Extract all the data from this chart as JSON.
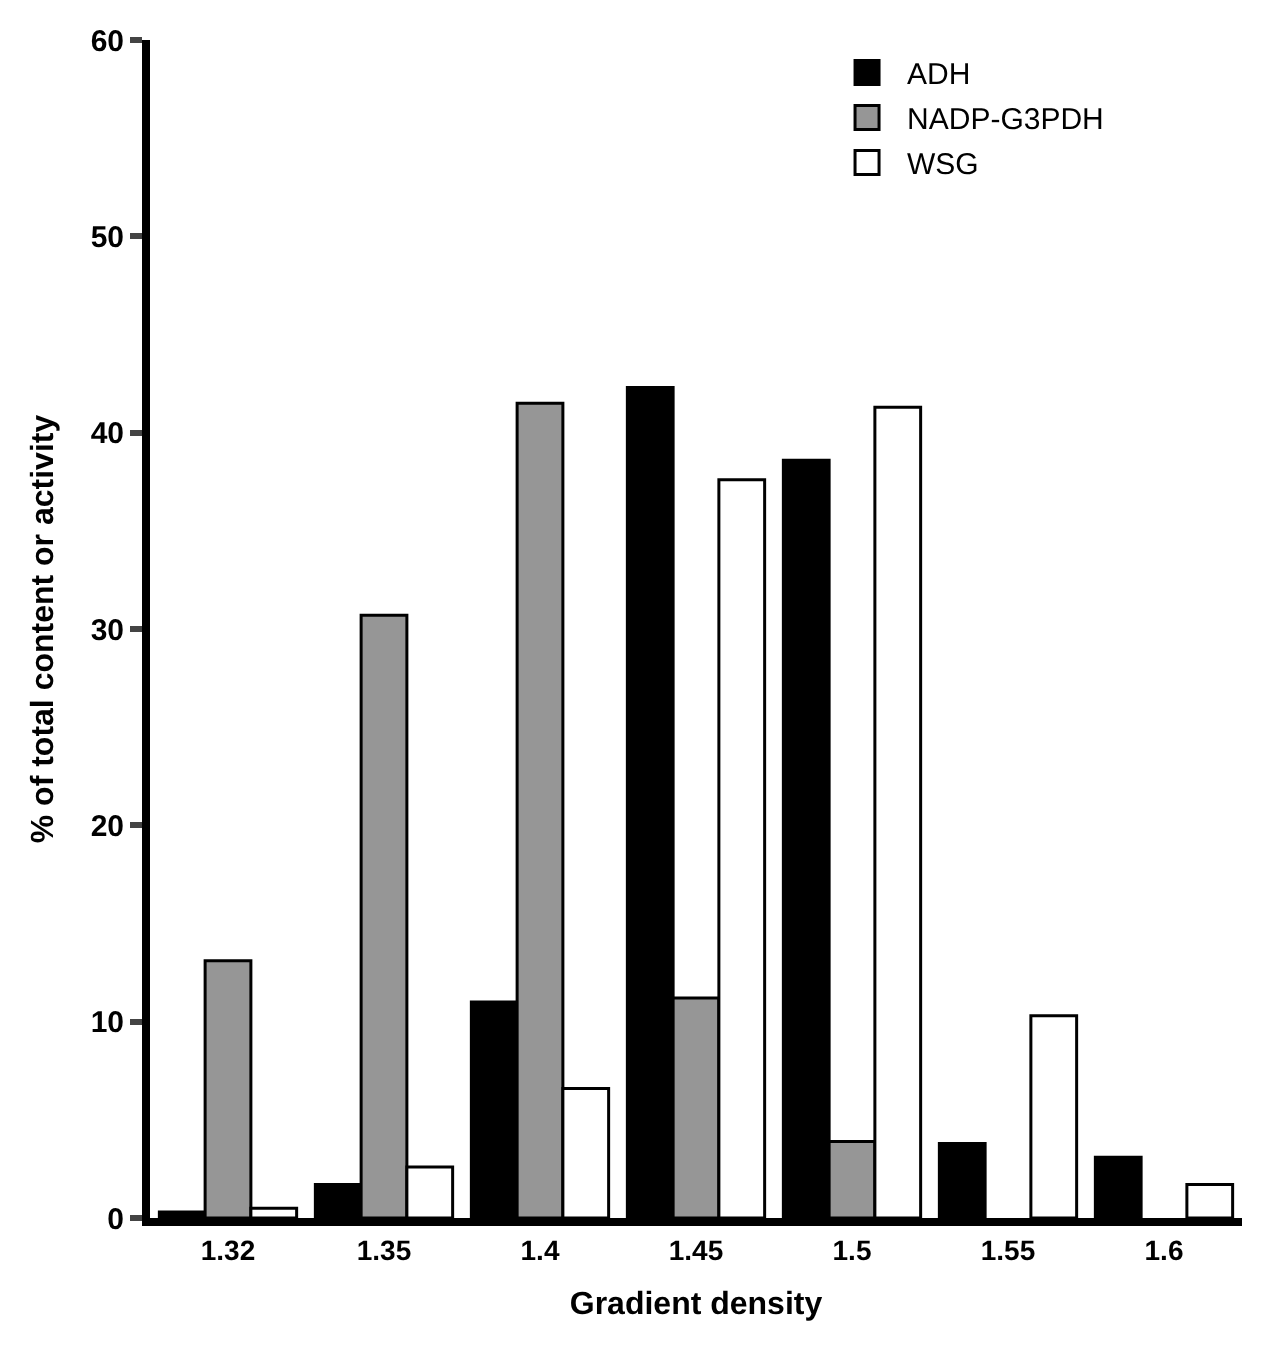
{
  "chart_data": {
    "type": "bar",
    "xlabel": "Gradient density",
    "ylabel": "% of total content or activity",
    "categories": [
      "1.32",
      "1.35",
      "1.4",
      "1.45",
      "1.5",
      "1.55",
      "1.6"
    ],
    "series": [
      {
        "name": "ADH",
        "color": "#000000",
        "values": [
          0.3,
          1.7,
          11.0,
          42.3,
          38.6,
          3.8,
          3.1
        ]
      },
      {
        "name": "NADP-G3PDH",
        "color": "#969696",
        "values": [
          13.1,
          30.7,
          41.5,
          11.2,
          3.9,
          null,
          null
        ]
      },
      {
        "name": "WSG",
        "color": "#ffffff",
        "values": [
          0.5,
          2.6,
          6.6,
          37.6,
          41.3,
          10.3,
          1.7
        ]
      }
    ],
    "ylim": [
      0,
      60
    ],
    "yticks": [
      0,
      10,
      20,
      30,
      40,
      50,
      60
    ],
    "legend": "top right"
  }
}
